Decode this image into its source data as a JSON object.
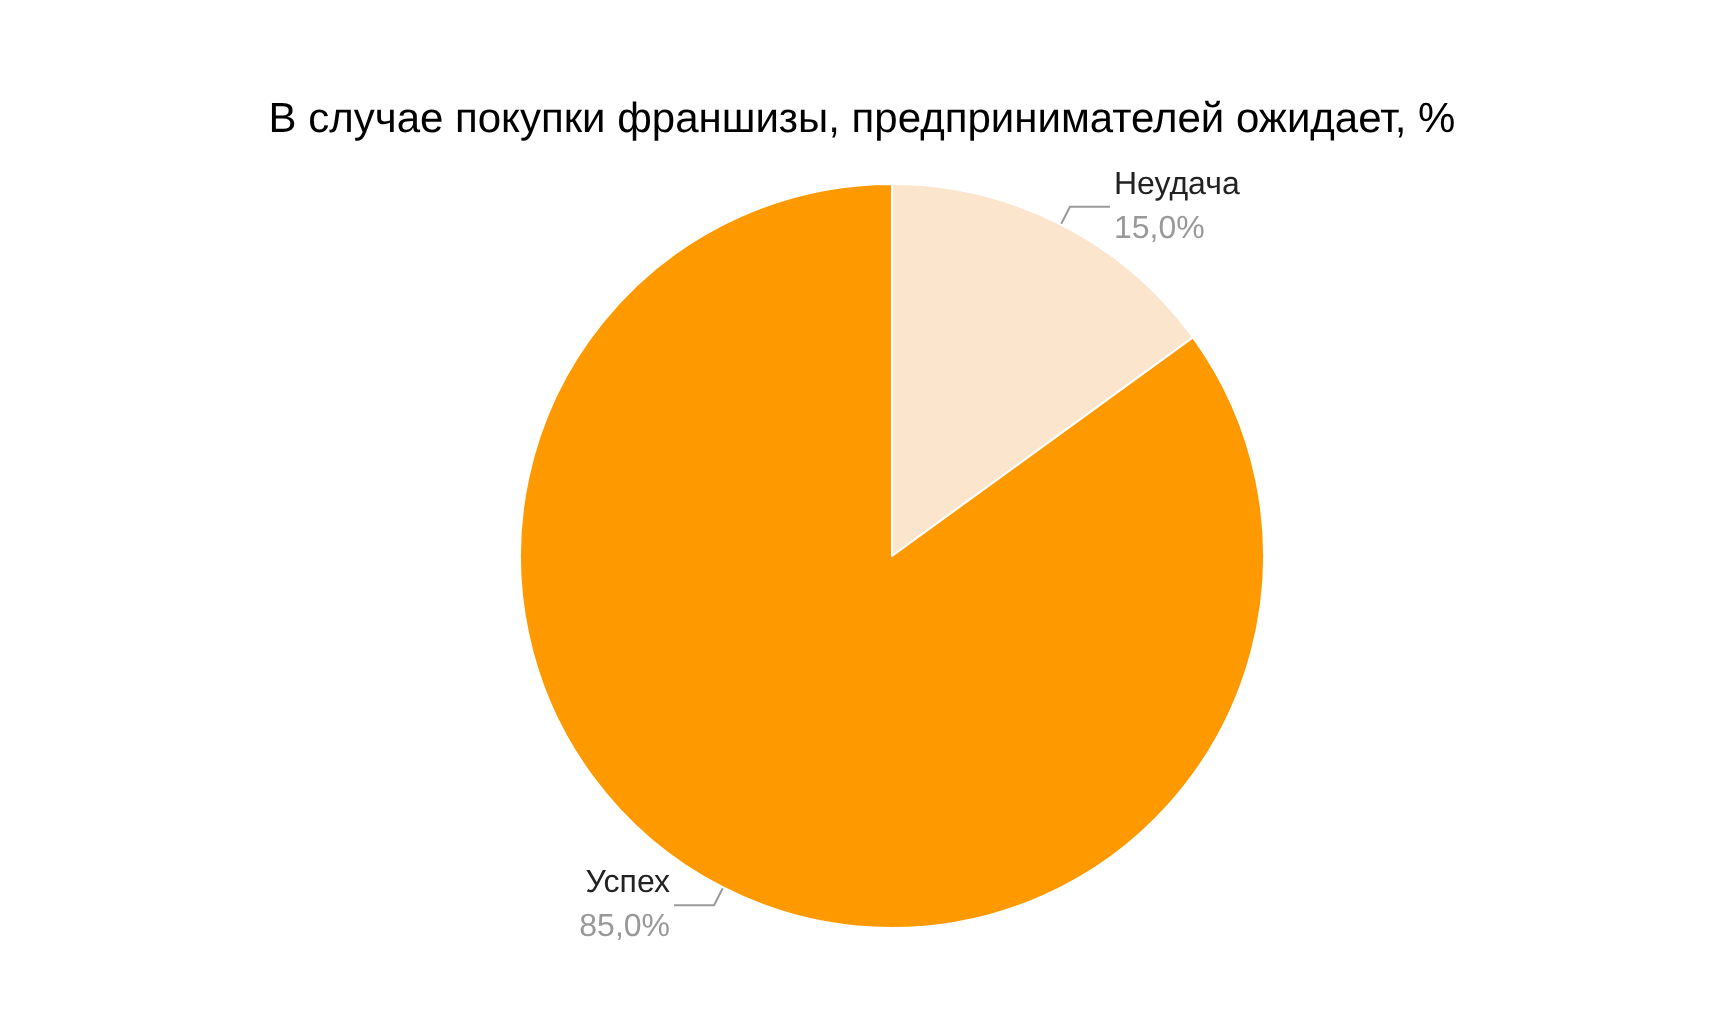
{
  "chart_data": {
    "type": "pie",
    "title": "В случае покупки франшизы, предпринимателей ожидает, %",
    "categories": [
      "Неудача",
      "Успех"
    ],
    "values": [
      15.0,
      85.0
    ],
    "colors": [
      "#fce5cd",
      "#ff9900"
    ],
    "value_labels": [
      "15,0%",
      "85,0%"
    ]
  }
}
